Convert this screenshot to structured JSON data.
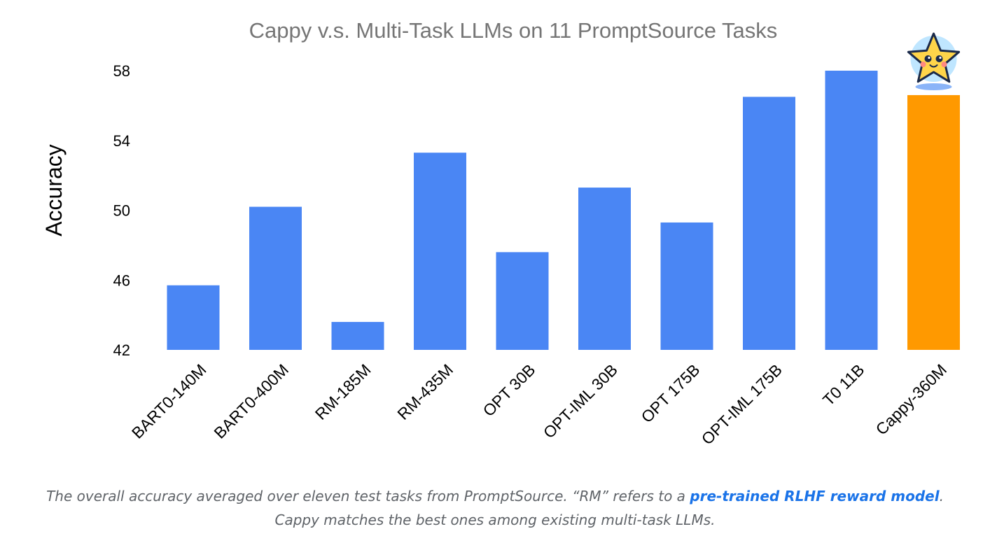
{
  "chart_data": {
    "type": "bar",
    "title": "Cappy v.s. Multi-Task LLMs on 11 PromptSource Tasks",
    "xlabel": "",
    "ylabel": "Accuracy",
    "ylim": [
      42,
      58
    ],
    "yticks": [
      42,
      46,
      50,
      54,
      58
    ],
    "grid": false,
    "categories": [
      "BART0-140M",
      "BART0-400M",
      "RM-185M",
      "RM-435M",
      "OPT 30B",
      "OPT-IML 30B",
      "OPT 175B",
      "OPT-IML 175B",
      "T0 11B",
      "Cappy-360M"
    ],
    "values": [
      45.7,
      50.2,
      43.6,
      53.3,
      47.6,
      51.3,
      49.3,
      56.5,
      58.0,
      56.6
    ],
    "bar_colors": [
      "#4a86f4",
      "#4a86f4",
      "#4a86f4",
      "#4a86f4",
      "#4a86f4",
      "#4a86f4",
      "#4a86f4",
      "#4a86f4",
      "#4a86f4",
      "#ff9900"
    ],
    "highlight_marker": "star-mascot-icon"
  },
  "caption": {
    "line1_before": "The overall accuracy averaged over eleven test tasks from PromptSource. “RM” refers to a ",
    "link_text": "pre-trained RLHF reward model",
    "line1_after": ".",
    "line2": "Cappy matches the best ones among existing multi-task LLMs."
  },
  "colors": {
    "bar": "#4a86f4",
    "highlight": "#ff9900",
    "title": "#757575",
    "link": "#1a73e8"
  }
}
